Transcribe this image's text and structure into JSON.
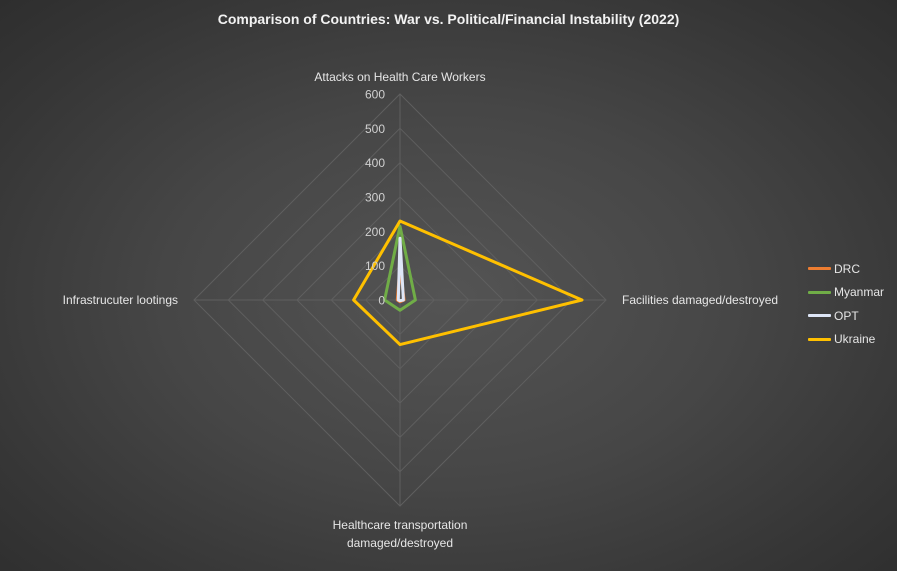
{
  "chart_data": {
    "type": "radar",
    "title": "Comparison of Countries: War vs. Political/Financial Instability (2022)",
    "axes": [
      "Attacks on Health Care Workers",
      "Facilities damaged/destroyed",
      "Healthcare transportation damaged/destroyed",
      "Infrastrucuter lootings"
    ],
    "axis_label_lines": [
      [
        "Attacks on Health Care Workers"
      ],
      [
        "Facilities damaged/destroyed"
      ],
      [
        "Healthcare transportation",
        "damaged/destroyed"
      ],
      [
        "Infrastrucuter lootings"
      ]
    ],
    "rlim": [
      0,
      600
    ],
    "ticks": [
      "0",
      "100",
      "200",
      "300",
      "400",
      "500",
      "600"
    ],
    "grid": true,
    "legend_position": "right",
    "series": [
      {
        "name": "DRC",
        "color": "#ed7d31",
        "values": [
          100,
          12,
          5,
          8
        ]
      },
      {
        "name": "Myanmar",
        "color": "#70ad47",
        "values": [
          215,
          45,
          30,
          45
        ]
      },
      {
        "name": "OPT",
        "color": "#dee6f7",
        "values": [
          180,
          10,
          2,
          5
        ]
      },
      {
        "name": "Ukraine",
        "color": "#ffc000",
        "values": [
          230,
          530,
          130,
          135
        ]
      }
    ]
  }
}
